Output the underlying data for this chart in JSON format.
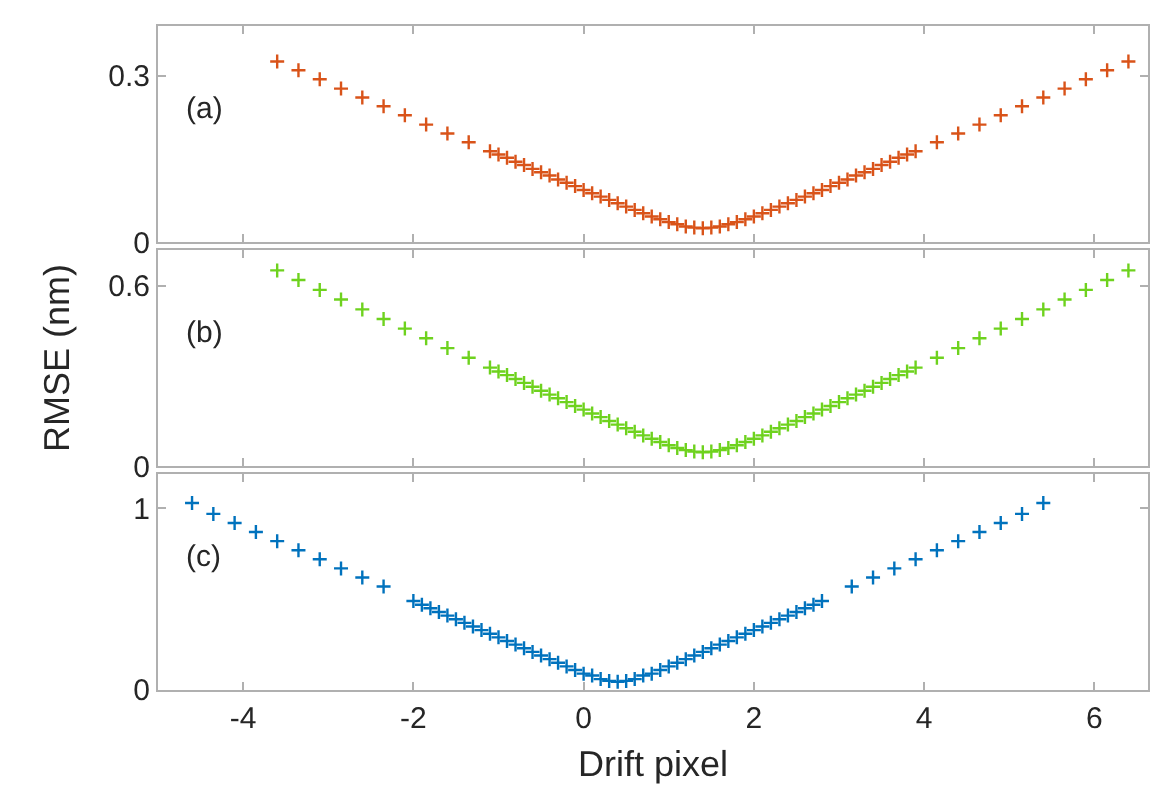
{
  "chart_data": [
    {
      "type": "scatter",
      "marker": "cross",
      "tick_labels": "y",
      "annotations": [
        "(a)"
      ],
      "xlim": [
        -5,
        6.63
      ],
      "xticks": [
        -4,
        -2,
        0,
        2,
        4,
        6
      ],
      "ylim": [
        0,
        0.39
      ],
      "yticks": [
        0,
        0.3
      ],
      "series": [
        {
          "color": "#d95319",
          "x": [
            -3.6,
            -3.35,
            -3.1,
            -2.85,
            -2.6,
            -2.35,
            -2.1,
            -1.85,
            -1.6,
            -1.35,
            -1.1,
            -1.0,
            -0.9,
            -0.8,
            -0.7,
            -0.6,
            -0.5,
            -0.4,
            -0.3,
            -0.2,
            -0.1,
            0.0,
            0.1,
            0.2,
            0.3,
            0.4,
            0.5,
            0.6,
            0.7,
            0.8,
            0.9,
            1.0,
            1.1,
            1.2,
            1.3,
            1.4,
            1.5,
            1.6,
            1.7,
            1.8,
            1.9,
            2.0,
            2.1,
            2.2,
            2.3,
            2.4,
            2.5,
            2.6,
            2.7,
            2.8,
            2.9,
            3.0,
            3.1,
            3.2,
            3.3,
            3.4,
            3.5,
            3.6,
            3.7,
            3.8,
            3.9,
            4.15,
            4.4,
            4.65,
            4.9,
            5.15,
            5.4,
            5.65,
            5.9,
            6.15,
            6.4
          ],
          "values": [
            0.326,
            0.31,
            0.294,
            0.277,
            0.261,
            0.245,
            0.229,
            0.212,
            0.196,
            0.18,
            0.164,
            0.158,
            0.152,
            0.145,
            0.139,
            0.132,
            0.126,
            0.12,
            0.113,
            0.107,
            0.101,
            0.094,
            0.088,
            0.082,
            0.076,
            0.07,
            0.064,
            0.058,
            0.052,
            0.046,
            0.041,
            0.036,
            0.032,
            0.028,
            0.026,
            0.025,
            0.026,
            0.028,
            0.032,
            0.036,
            0.041,
            0.046,
            0.052,
            0.058,
            0.064,
            0.07,
            0.076,
            0.082,
            0.088,
            0.094,
            0.101,
            0.107,
            0.113,
            0.12,
            0.126,
            0.132,
            0.139,
            0.145,
            0.152,
            0.158,
            0.164,
            0.18,
            0.196,
            0.212,
            0.229,
            0.245,
            0.261,
            0.277,
            0.294,
            0.31,
            0.326
          ]
        }
      ]
    },
    {
      "type": "scatter",
      "marker": "cross",
      "tick_labels": "y",
      "annotations": [
        "(b)"
      ],
      "ylabel": "RMSE (nm)",
      "xlim": [
        -5,
        6.63
      ],
      "xticks": [
        -4,
        -2,
        0,
        2,
        4,
        6
      ],
      "ylim": [
        0,
        0.72
      ],
      "yticks": [
        0,
        0.6
      ],
      "series": [
        {
          "color": "#6ed21e",
          "x": [
            -3.6,
            -3.35,
            -3.1,
            -2.85,
            -2.6,
            -2.35,
            -2.1,
            -1.85,
            -1.6,
            -1.35,
            -1.1,
            -1.0,
            -0.9,
            -0.8,
            -0.7,
            -0.6,
            -0.5,
            -0.4,
            -0.3,
            -0.2,
            -0.1,
            0.0,
            0.1,
            0.2,
            0.3,
            0.4,
            0.5,
            0.6,
            0.7,
            0.8,
            0.9,
            1.0,
            1.1,
            1.2,
            1.3,
            1.4,
            1.5,
            1.6,
            1.7,
            1.8,
            1.9,
            2.0,
            2.1,
            2.2,
            2.3,
            2.4,
            2.5,
            2.6,
            2.7,
            2.8,
            2.9,
            3.0,
            3.1,
            3.2,
            3.3,
            3.4,
            3.5,
            3.6,
            3.7,
            3.8,
            3.9,
            4.15,
            4.4,
            4.65,
            4.9,
            5.15,
            5.4,
            5.65,
            5.9,
            6.15,
            6.4
          ],
          "values": [
            0.652,
            0.62,
            0.587,
            0.555,
            0.522,
            0.49,
            0.458,
            0.426,
            0.393,
            0.361,
            0.328,
            0.315,
            0.303,
            0.29,
            0.277,
            0.264,
            0.251,
            0.238,
            0.226,
            0.213,
            0.2,
            0.188,
            0.175,
            0.163,
            0.15,
            0.138,
            0.126,
            0.114,
            0.102,
            0.091,
            0.08,
            0.069,
            0.06,
            0.053,
            0.048,
            0.046,
            0.048,
            0.053,
            0.06,
            0.069,
            0.08,
            0.091,
            0.102,
            0.114,
            0.126,
            0.138,
            0.15,
            0.163,
            0.175,
            0.188,
            0.2,
            0.213,
            0.226,
            0.238,
            0.251,
            0.264,
            0.277,
            0.29,
            0.303,
            0.315,
            0.328,
            0.361,
            0.393,
            0.426,
            0.458,
            0.49,
            0.522,
            0.555,
            0.587,
            0.62,
            0.652
          ]
        }
      ]
    },
    {
      "type": "scatter",
      "marker": "cross",
      "annotations": [
        "(c)"
      ],
      "xlabel": "Drift pixel",
      "xlim": [
        -5,
        6.63
      ],
      "xticks": [
        -4,
        -2,
        0,
        2,
        4,
        6
      ],
      "ylim": [
        0,
        1.19
      ],
      "yticks": [
        0,
        1
      ],
      "series": [
        {
          "color": "#0072bd",
          "x": [
            -4.6,
            -4.35,
            -4.1,
            -3.85,
            -3.6,
            -3.35,
            -3.1,
            -2.85,
            -2.6,
            -2.35,
            -2.0,
            -1.9,
            -1.8,
            -1.7,
            -1.6,
            -1.5,
            -1.4,
            -1.3,
            -1.2,
            -1.1,
            -1.0,
            -0.9,
            -0.8,
            -0.7,
            -0.6,
            -0.5,
            -0.4,
            -0.3,
            -0.2,
            -0.1,
            0.0,
            0.1,
            0.2,
            0.3,
            0.4,
            0.5,
            0.6,
            0.7,
            0.8,
            0.9,
            1.0,
            1.1,
            1.2,
            1.3,
            1.4,
            1.5,
            1.6,
            1.7,
            1.8,
            1.9,
            2.0,
            2.1,
            2.2,
            2.3,
            2.4,
            2.5,
            2.6,
            2.7,
            2.8,
            3.15,
            3.4,
            3.65,
            3.9,
            4.15,
            4.4,
            4.65,
            4.9,
            5.15,
            5.4
          ],
          "values": [
            1.03,
            0.97,
            0.92,
            0.87,
            0.82,
            0.77,
            0.72,
            0.67,
            0.62,
            0.57,
            0.49,
            0.47,
            0.45,
            0.43,
            0.41,
            0.39,
            0.37,
            0.35,
            0.33,
            0.31,
            0.29,
            0.27,
            0.25,
            0.23,
            0.21,
            0.19,
            0.17,
            0.15,
            0.13,
            0.11,
            0.09,
            0.08,
            0.06,
            0.05,
            0.045,
            0.05,
            0.06,
            0.08,
            0.09,
            0.11,
            0.13,
            0.15,
            0.17,
            0.19,
            0.21,
            0.23,
            0.25,
            0.27,
            0.29,
            0.31,
            0.33,
            0.35,
            0.37,
            0.39,
            0.41,
            0.43,
            0.45,
            0.47,
            0.49,
            0.57,
            0.62,
            0.67,
            0.72,
            0.77,
            0.82,
            0.87,
            0.92,
            0.97,
            1.03
          ]
        }
      ]
    }
  ]
}
